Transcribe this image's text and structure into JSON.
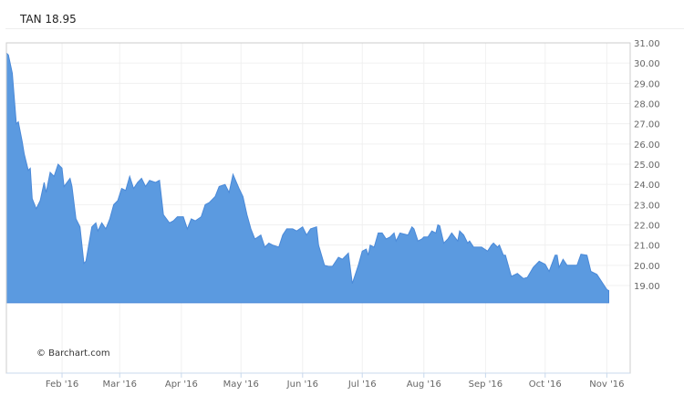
{
  "header": {
    "title": "TAN 18.95"
  },
  "credit": "© Barchart.com",
  "colors": {
    "area_fill": "#5b9ae0",
    "area_line": "#4a89d8",
    "grid": "#f0f0f0",
    "border": "#cccccc",
    "x_axis": "#c8d8ec"
  },
  "chart_data": {
    "type": "area",
    "title": "TAN 18.95",
    "xlabel": "",
    "ylabel": "",
    "xlim": [
      "2016-01-04",
      "2016-11-30"
    ],
    "ylim": [
      14.67,
      31.0
    ],
    "area_baseline": 18.15,
    "grid": true,
    "y_axis_position": "right",
    "y_ticks": [
      "19.00",
      "20.00",
      "21.00",
      "22.00",
      "23.00",
      "24.00",
      "25.00",
      "26.00",
      "27.00",
      "28.00",
      "29.00",
      "30.00",
      "31.00"
    ],
    "x_ticks": [
      {
        "date": "2016-02-01",
        "label": "Feb '16"
      },
      {
        "date": "2016-03-01",
        "label": "Mar '16"
      },
      {
        "date": "2016-04-01",
        "label": "Apr '16"
      },
      {
        "date": "2016-05-01",
        "label": "May '16"
      },
      {
        "date": "2016-06-01",
        "label": "Jun '16"
      },
      {
        "date": "2016-07-01",
        "label": "Jul '16"
      },
      {
        "date": "2016-08-01",
        "label": "Aug '16"
      },
      {
        "date": "2016-09-01",
        "label": "Sep '16"
      },
      {
        "date": "2016-10-01",
        "label": "Oct '16"
      },
      {
        "date": "2016-11-01",
        "label": "Nov '16"
      }
    ],
    "series": [
      {
        "points": [
          [
            "2016-01-04",
            30.5
          ],
          [
            "2016-01-05",
            30.4
          ],
          [
            "2016-01-07",
            29.5
          ],
          [
            "2016-01-09",
            27.0
          ],
          [
            "2016-01-10",
            27.1
          ],
          [
            "2016-01-12",
            26.1
          ],
          [
            "2016-01-13",
            25.5
          ],
          [
            "2016-01-15",
            24.7
          ],
          [
            "2016-01-16",
            24.8
          ],
          [
            "2016-01-17",
            23.3
          ],
          [
            "2016-01-19",
            22.8
          ],
          [
            "2016-01-21",
            23.2
          ],
          [
            "2016-01-23",
            24.1
          ],
          [
            "2016-01-24",
            23.6
          ],
          [
            "2016-01-26",
            24.6
          ],
          [
            "2016-01-28",
            24.4
          ],
          [
            "2016-01-30",
            25.0
          ],
          [
            "2016-02-01",
            24.8
          ],
          [
            "2016-02-02",
            23.9
          ],
          [
            "2016-02-05",
            24.3
          ],
          [
            "2016-02-06",
            23.9
          ],
          [
            "2016-02-08",
            22.3
          ],
          [
            "2016-02-10",
            21.9
          ],
          [
            "2016-02-12",
            20.1
          ],
          [
            "2016-02-13",
            20.2
          ],
          [
            "2016-02-16",
            21.9
          ],
          [
            "2016-02-18",
            22.1
          ],
          [
            "2016-02-19",
            21.7
          ],
          [
            "2016-02-21",
            22.1
          ],
          [
            "2016-02-23",
            21.8
          ],
          [
            "2016-02-25",
            22.3
          ],
          [
            "2016-02-27",
            23.0
          ],
          [
            "2016-02-29",
            23.2
          ],
          [
            "2016-03-02",
            23.8
          ],
          [
            "2016-03-04",
            23.7
          ],
          [
            "2016-03-06",
            24.4
          ],
          [
            "2016-03-08",
            23.8
          ],
          [
            "2016-03-10",
            24.1
          ],
          [
            "2016-03-12",
            24.3
          ],
          [
            "2016-03-14",
            23.9
          ],
          [
            "2016-03-16",
            24.2
          ],
          [
            "2016-03-19",
            24.1
          ],
          [
            "2016-03-21",
            24.2
          ],
          [
            "2016-03-23",
            22.5
          ],
          [
            "2016-03-26",
            22.1
          ],
          [
            "2016-03-28",
            22.2
          ],
          [
            "2016-03-30",
            22.4
          ],
          [
            "2016-04-02",
            22.4
          ],
          [
            "2016-04-04",
            21.8
          ],
          [
            "2016-04-06",
            22.3
          ],
          [
            "2016-04-08",
            22.2
          ],
          [
            "2016-04-11",
            22.4
          ],
          [
            "2016-04-13",
            23.0
          ],
          [
            "2016-04-15",
            23.1
          ],
          [
            "2016-04-18",
            23.4
          ],
          [
            "2016-04-20",
            23.9
          ],
          [
            "2016-04-23",
            24.0
          ],
          [
            "2016-04-25",
            23.6
          ],
          [
            "2016-04-27",
            24.5
          ],
          [
            "2016-04-30",
            23.8
          ],
          [
            "2016-05-02",
            23.4
          ],
          [
            "2016-05-04",
            22.5
          ],
          [
            "2016-05-06",
            21.8
          ],
          [
            "2016-05-08",
            21.3
          ],
          [
            "2016-05-11",
            21.5
          ],
          [
            "2016-05-13",
            20.9
          ],
          [
            "2016-05-15",
            21.1
          ],
          [
            "2016-05-17",
            21.0
          ],
          [
            "2016-05-20",
            20.9
          ],
          [
            "2016-05-22",
            21.5
          ],
          [
            "2016-05-24",
            21.8
          ],
          [
            "2016-05-27",
            21.8
          ],
          [
            "2016-05-29",
            21.7
          ],
          [
            "2016-06-01",
            21.9
          ],
          [
            "2016-06-03",
            21.5
          ],
          [
            "2016-06-05",
            21.8
          ],
          [
            "2016-06-08",
            21.9
          ],
          [
            "2016-06-09",
            21.0
          ],
          [
            "2016-06-12",
            20.0
          ],
          [
            "2016-06-14",
            19.95
          ],
          [
            "2016-06-16",
            19.95
          ],
          [
            "2016-06-19",
            20.4
          ],
          [
            "2016-06-21",
            20.3
          ],
          [
            "2016-06-24",
            20.6
          ],
          [
            "2016-06-26",
            19.1
          ],
          [
            "2016-06-29",
            20.0
          ],
          [
            "2016-07-01",
            20.7
          ],
          [
            "2016-07-03",
            20.8
          ],
          [
            "2016-07-04",
            20.5
          ],
          [
            "2016-07-05",
            21.0
          ],
          [
            "2016-07-07",
            20.9
          ],
          [
            "2016-07-09",
            21.6
          ],
          [
            "2016-07-11",
            21.6
          ],
          [
            "2016-07-13",
            21.3
          ],
          [
            "2016-07-15",
            21.4
          ],
          [
            "2016-07-17",
            21.6
          ],
          [
            "2016-07-18",
            21.2
          ],
          [
            "2016-07-20",
            21.6
          ],
          [
            "2016-07-24",
            21.5
          ],
          [
            "2016-07-26",
            21.9
          ],
          [
            "2016-07-27",
            21.8
          ],
          [
            "2016-07-29",
            21.2
          ],
          [
            "2016-07-31",
            21.3
          ],
          [
            "2016-08-01",
            21.4
          ],
          [
            "2016-08-03",
            21.4
          ],
          [
            "2016-08-05",
            21.7
          ],
          [
            "2016-08-07",
            21.6
          ],
          [
            "2016-08-08",
            22.0
          ],
          [
            "2016-08-09",
            21.95
          ],
          [
            "2016-08-11",
            21.1
          ],
          [
            "2016-08-13",
            21.3
          ],
          [
            "2016-08-15",
            21.6
          ],
          [
            "2016-08-18",
            21.2
          ],
          [
            "2016-08-19",
            21.7
          ],
          [
            "2016-08-21",
            21.5
          ],
          [
            "2016-08-23",
            21.1
          ],
          [
            "2016-08-24",
            21.2
          ],
          [
            "2016-08-26",
            20.9
          ],
          [
            "2016-08-30",
            20.9
          ],
          [
            "2016-09-02",
            20.7
          ],
          [
            "2016-09-04",
            21.0
          ],
          [
            "2016-09-05",
            21.1
          ],
          [
            "2016-09-07",
            20.9
          ],
          [
            "2016-09-08",
            21.0
          ],
          [
            "2016-09-10",
            20.5
          ],
          [
            "2016-09-11",
            20.5
          ],
          [
            "2016-09-14",
            19.45
          ],
          [
            "2016-09-17",
            19.6
          ],
          [
            "2016-09-20",
            19.35
          ],
          [
            "2016-09-22",
            19.4
          ],
          [
            "2016-09-25",
            19.9
          ],
          [
            "2016-09-28",
            20.2
          ],
          [
            "2016-10-01",
            20.05
          ],
          [
            "2016-10-03",
            19.7
          ],
          [
            "2016-10-06",
            20.5
          ],
          [
            "2016-10-07",
            20.5
          ],
          [
            "2016-10-08",
            19.9
          ],
          [
            "2016-10-10",
            20.3
          ],
          [
            "2016-10-12",
            20.0
          ],
          [
            "2016-10-15",
            20.0
          ],
          [
            "2016-10-17",
            20.0
          ],
          [
            "2016-10-19",
            20.55
          ],
          [
            "2016-10-22",
            20.5
          ],
          [
            "2016-10-24",
            19.7
          ],
          [
            "2016-10-27",
            19.55
          ],
          [
            "2016-11-01",
            18.8
          ],
          [
            "2016-11-02",
            18.75
          ]
        ]
      }
    ]
  }
}
